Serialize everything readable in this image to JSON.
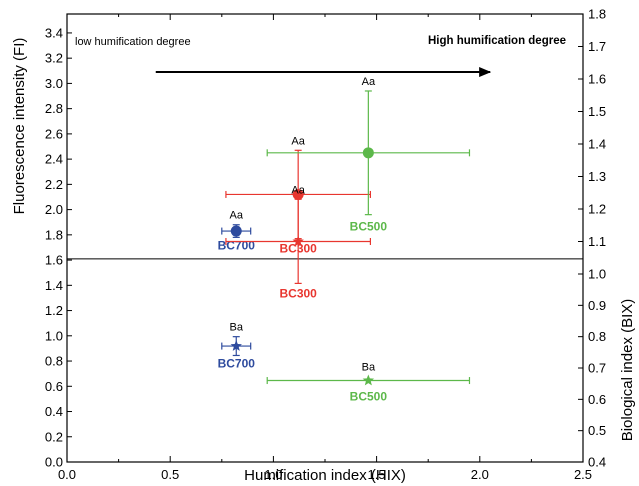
{
  "chart_data": {
    "type": "scatter",
    "xlabel": "Humification index (HIX)",
    "ylabel_left": "Fluorescence intensity (FI)",
    "ylabel_right": "Biological index (BIX)",
    "xlim": [
      0.0,
      2.5
    ],
    "x_ticks": [
      "0.0",
      "0.5",
      "1.0",
      "1.5",
      "2.0",
      "2.5"
    ],
    "y_left_ticks": [
      "0.0",
      "0.2",
      "0.4",
      "0.6",
      "0.8",
      "1.0",
      "1.2",
      "1.4",
      "1.6",
      "1.8",
      "2.0",
      "2.2",
      "2.4",
      "2.6",
      "2.8",
      "3.0",
      "3.2",
      "3.4"
    ],
    "y_right_ticks": [
      "0.4",
      "0.5",
      "0.6",
      "0.7",
      "0.8",
      "0.9",
      "1.0",
      "1.1",
      "1.2",
      "1.3",
      "1.4",
      "1.5",
      "1.6",
      "1.7",
      "1.8"
    ],
    "ylim_left": [
      0.0,
      3.55
    ],
    "ylim_right_upper": [
      1.0467,
      1.8
    ],
    "annotation_low": "low humification degree",
    "annotation_high": "High humification degree",
    "arrow": {
      "x_start": 0.43,
      "x_end": 2.05,
      "y": 3.09
    },
    "divider_y": 1.61,
    "upper_panel_FI": [
      {
        "name": "BC700",
        "x": 0.82,
        "x_err": 0.07,
        "y": 1.83,
        "y_err": 0.05,
        "letters": "Aa",
        "color": "#2e4b9e",
        "marker": "circle"
      },
      {
        "name": "BC300",
        "x": 1.12,
        "x_err": 0.35,
        "y": 2.12,
        "y_err": 0.35,
        "letters": "Aa",
        "color": "#e8362f",
        "marker": "circle"
      },
      {
        "name": "BC500",
        "x": 1.46,
        "x_err": 0.49,
        "y": 2.45,
        "y_err": 0.49,
        "letters": "Aa",
        "color": "#5cb84a",
        "marker": "circle"
      }
    ],
    "lower_panel_BIX": [
      {
        "name": "BC700",
        "x": 0.82,
        "x_err": 0.07,
        "y": 0.77,
        "y_err": 0.03,
        "letters": "Ba",
        "color": "#2e4b9e",
        "marker": "star"
      },
      {
        "name": "BC300",
        "x": 1.12,
        "x_err": 0.35,
        "y": 1.1,
        "y_err": 0.13,
        "letters": "Aa",
        "color": "#e8362f",
        "marker": "star"
      },
      {
        "name": "BC500",
        "x": 1.46,
        "x_err": 0.49,
        "y": 0.66,
        "y_err": 0.0,
        "letters": "Ba",
        "color": "#5cb84a",
        "marker": "star"
      }
    ]
  }
}
